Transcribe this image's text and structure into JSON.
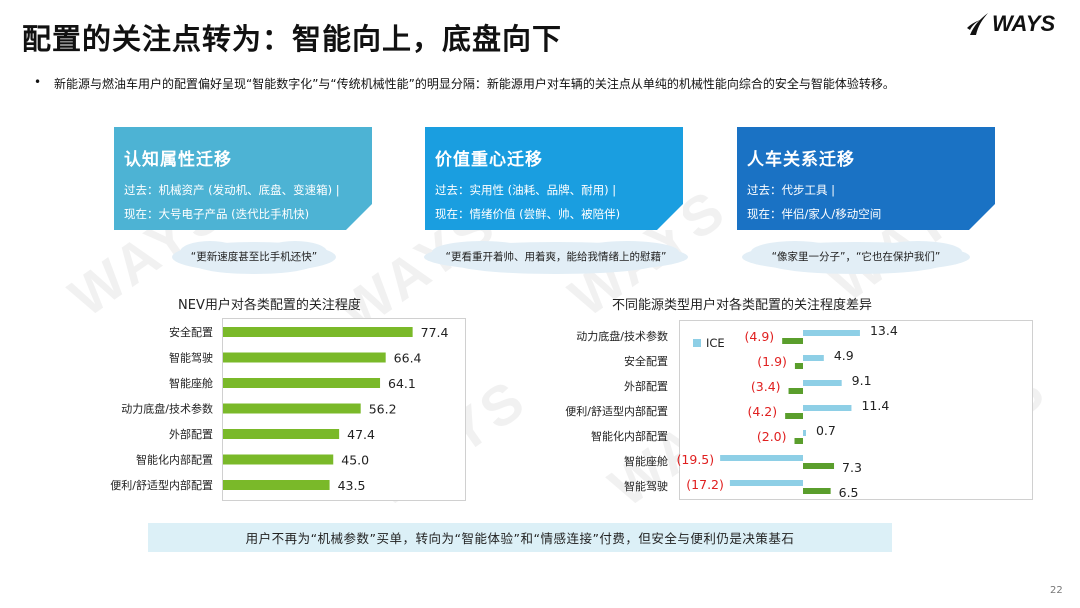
{
  "header": {
    "title": "配置的关注点转为：智能向上，底盘向下",
    "logo_text": "WAYS"
  },
  "bullet": "新能源与燃油车用户的配置偏好呈现“智能数字化”与“传统机械性能”的明显分隔：新能源用户对车辆的关注点从单纯的机械性能向综合的安全与智能体验转移。",
  "cards": [
    {
      "title": "认知属性迁移",
      "past": "过去：机械资产 (发动机、底盘、变速箱) |",
      "now": "现在：大号电子产品 (迭代比手机快)",
      "quote": "“更新速度甚至比手机还快”",
      "color": "#4db3d4"
    },
    {
      "title": "价值重心迁移",
      "past": "过去：实用性 (油耗、品牌、耐用) |",
      "now": "现在：情绪价值 (尝鲜、帅、被陪伴)",
      "quote": "“更看重开着帅、用着爽，能给我情绪上的慰藉”",
      "color": "#1a9ee0"
    },
    {
      "title": "人车关系迁移",
      "past": "过去：代步工具 |",
      "now": "现在：伴侣/家人/移动空间",
      "quote": "“像家里一分子”，“它也在保护我们”",
      "color": "#1a72c4"
    }
  ],
  "chart_data": [
    {
      "type": "bar",
      "orientation": "horizontal",
      "title": "NEV用户对各类配置的关注程度",
      "categories": [
        "安全配置",
        "智能驾驶",
        "智能座舱",
        "动力底盘/技术参数",
        "外部配置",
        "智能化内部配置",
        "便利/舒适型内部配置"
      ],
      "values": [
        77.4,
        66.4,
        64.1,
        56.2,
        47.4,
        45.0,
        43.5
      ],
      "value_labels": [
        "77.4",
        "66.4",
        "64.1",
        "56.2",
        "47.4",
        "45.0",
        "43.5"
      ],
      "color": "#7ab929",
      "xlim": [
        0,
        100
      ]
    },
    {
      "type": "bar",
      "orientation": "horizontal",
      "title": "不同能源类型用户对各类配置的关注程度差异",
      "categories": [
        "动力底盘/技术参数",
        "安全配置",
        "外部配置",
        "便利/舒适型内部配置",
        "智能化内部配置",
        "智能座舱",
        "智能驾驶"
      ],
      "series": [
        {
          "name": "ICE",
          "values": [
            13.4,
            4.9,
            9.1,
            11.4,
            0.7,
            -19.5,
            -17.2
          ],
          "labels": [
            "13.4",
            "(19.5)",
            "(17.2)"
          ],
          "color": "#8ecfe6"
        },
        {
          "values": [
            -4.9,
            -1.9,
            -3.4,
            -4.2,
            -2.0,
            7.3,
            6.5
          ],
          "labels": [
            "(4.9)",
            "(1.9)",
            "(3.4)",
            "(4.2)",
            "(2.0)",
            "7.3",
            "6.5"
          ],
          "color": "#5a9e2c"
        }
      ],
      "ice_labels": [
        "13.4",
        "4.9",
        "9.1",
        "11.4",
        "0.7",
        "(19.5)",
        "(17.2)"
      ],
      "nev_labels": [
        "(4.9)",
        "(1.9)",
        "(3.4)",
        "(4.2)",
        "(2.0)",
        "7.3",
        "6.5"
      ],
      "negative_label_color": "#e02020",
      "legend": "top-left",
      "xlim": [
        -22,
        16
      ]
    }
  ],
  "banner": "用户不再为“机械参数”买单，转向为“智能体验”和“情感连接”付费，但安全与便利仍是决策基石",
  "page_number": "22",
  "watermark": "WAYS"
}
